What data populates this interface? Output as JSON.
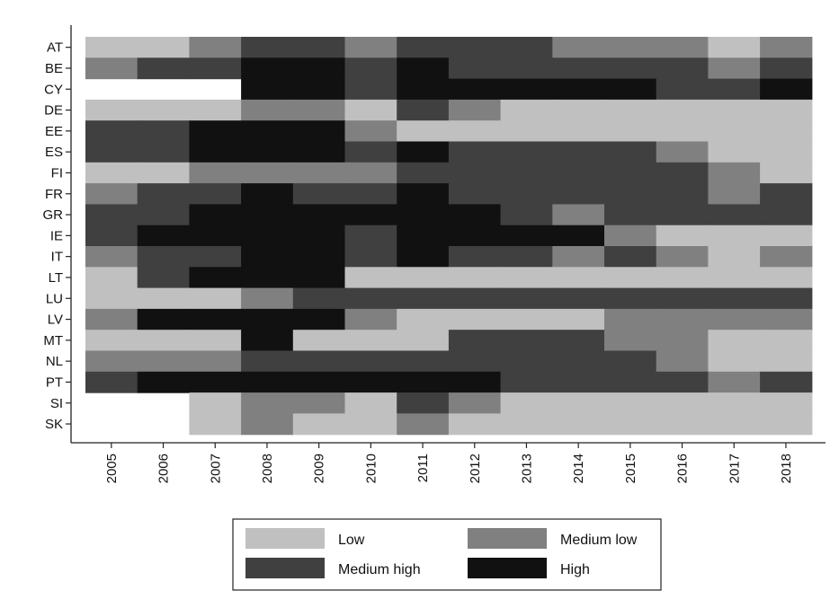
{
  "chart_data": {
    "type": "heatmap",
    "title": "",
    "xlabel": "",
    "ylabel": "",
    "x": [
      "2005",
      "2006",
      "2007",
      "2008",
      "2009",
      "2010",
      "2011",
      "2012",
      "2013",
      "2014",
      "2015",
      "2016",
      "2017",
      "2018"
    ],
    "y": [
      "AT",
      "BE",
      "CY",
      "DE",
      "EE",
      "ES",
      "FI",
      "FR",
      "GR",
      "IE",
      "IT",
      "LT",
      "LU",
      "LV",
      "MT",
      "NL",
      "PT",
      "SI",
      "SK"
    ],
    "levels": [
      "Low",
      "Medium low",
      "Medium high",
      "High"
    ],
    "level_colors": {
      "Low": "#c0c0c0",
      "Medium low": "#808080",
      "Medium high": "#404040",
      "High": "#111111"
    },
    "values": [
      [
        "Low",
        "Low",
        "Medium low",
        "Medium high",
        "Medium high",
        "Medium low",
        "Medium high",
        "Medium high",
        "Medium high",
        "Medium low",
        "Medium low",
        "Medium low",
        "Low",
        "Medium low"
      ],
      [
        "Medium low",
        "Medium high",
        "Medium high",
        "High",
        "High",
        "Medium high",
        "High",
        "Medium high",
        "Medium high",
        "Medium high",
        "Medium high",
        "Medium high",
        "Medium low",
        "Medium high"
      ],
      [
        null,
        null,
        null,
        "High",
        "High",
        "Medium high",
        "High",
        "High",
        "High",
        "High",
        "High",
        "Medium high",
        "Medium high",
        "High"
      ],
      [
        "Low",
        "Low",
        "Low",
        "Medium low",
        "Medium low",
        "Low",
        "Medium high",
        "Medium low",
        "Low",
        "Low",
        "Low",
        "Low",
        "Low",
        "Low"
      ],
      [
        "Medium high",
        "Medium high",
        "High",
        "High",
        "High",
        "Medium low",
        "Low",
        "Low",
        "Low",
        "Low",
        "Low",
        "Low",
        "Low",
        "Low"
      ],
      [
        "Medium high",
        "Medium high",
        "High",
        "High",
        "High",
        "Medium high",
        "High",
        "Medium high",
        "Medium high",
        "Medium high",
        "Medium high",
        "Medium low",
        "Low",
        "Low"
      ],
      [
        "Low",
        "Low",
        "Medium low",
        "Medium low",
        "Medium low",
        "Medium low",
        "Medium high",
        "Medium high",
        "Medium high",
        "Medium high",
        "Medium high",
        "Medium high",
        "Medium low",
        "Low"
      ],
      [
        "Medium low",
        "Medium high",
        "Medium high",
        "High",
        "Medium high",
        "Medium high",
        "High",
        "Medium high",
        "Medium high",
        "Medium high",
        "Medium high",
        "Medium high",
        "Medium low",
        "Medium high"
      ],
      [
        "Medium high",
        "Medium high",
        "High",
        "High",
        "High",
        "High",
        "High",
        "High",
        "Medium high",
        "Medium low",
        "Medium high",
        "Medium high",
        "Medium high",
        "Medium high"
      ],
      [
        "Medium high",
        "High",
        "High",
        "High",
        "High",
        "Medium high",
        "High",
        "High",
        "High",
        "High",
        "Medium low",
        "Low",
        "Low",
        "Low"
      ],
      [
        "Medium low",
        "Medium high",
        "Medium high",
        "High",
        "High",
        "Medium high",
        "High",
        "Medium high",
        "Medium high",
        "Medium low",
        "Medium high",
        "Medium low",
        "Low",
        "Medium low"
      ],
      [
        "Low",
        "Medium high",
        "High",
        "High",
        "High",
        "Low",
        "Low",
        "Low",
        "Low",
        "Low",
        "Low",
        "Low",
        "Low",
        "Low"
      ],
      [
        "Low",
        "Low",
        "Low",
        "Medium low",
        "Medium high",
        "Medium high",
        "Medium high",
        "Medium high",
        "Medium high",
        "Medium high",
        "Medium high",
        "Medium high",
        "Medium high",
        "Medium high"
      ],
      [
        "Medium low",
        "High",
        "High",
        "High",
        "High",
        "Medium low",
        "Low",
        "Low",
        "Low",
        "Low",
        "Medium low",
        "Medium low",
        "Medium low",
        "Medium low"
      ],
      [
        "Low",
        "Low",
        "Low",
        "High",
        "Low",
        "Low",
        "Low",
        "Medium high",
        "Medium high",
        "Medium high",
        "Medium low",
        "Medium low",
        "Low",
        "Low"
      ],
      [
        "Medium low",
        "Medium low",
        "Medium low",
        "Medium high",
        "Medium high",
        "Medium high",
        "Medium high",
        "Medium high",
        "Medium high",
        "Medium high",
        "Medium high",
        "Medium low",
        "Low",
        "Low"
      ],
      [
        "Medium high",
        "High",
        "High",
        "High",
        "High",
        "High",
        "High",
        "High",
        "Medium high",
        "Medium high",
        "Medium high",
        "Medium high",
        "Medium low",
        "Medium high"
      ],
      [
        null,
        null,
        "Low",
        "Medium low",
        "Medium low",
        "Low",
        "Medium high",
        "Medium low",
        "Low",
        "Low",
        "Low",
        "Low",
        "Low",
        "Low"
      ],
      [
        null,
        null,
        "Low",
        "Medium low",
        "Low",
        "Low",
        "Medium low",
        "Low",
        "Low",
        "Low",
        "Low",
        "Low",
        "Low",
        "Low"
      ]
    ],
    "legend": {
      "position": "bottom",
      "entries": [
        "Low",
        "Medium low",
        "Medium high",
        "High"
      ]
    },
    "grid": false
  }
}
